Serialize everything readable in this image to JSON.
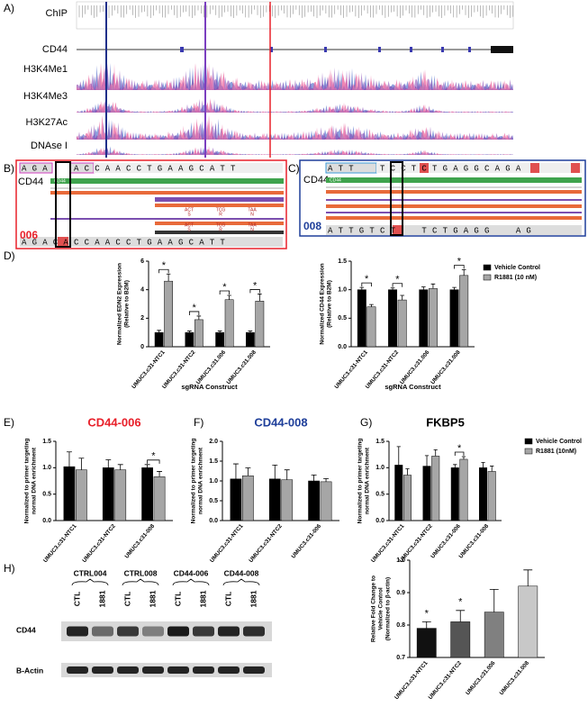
{
  "panel_labels": [
    "A)",
    "B)",
    "C)",
    "D)",
    "E)",
    "F)",
    "G)",
    "H)"
  ],
  "tracks": [
    "ChIP",
    "CD44",
    "H3K4Me1",
    "H3K4Me3",
    "H3K27Ac",
    "DNAse I"
  ],
  "panel_b": {
    "gene": "CD44",
    "sequence_top": "AGA  ACCAACCTGAAGCATT",
    "sequence_bottom": "AGACACCAACCTGAAGCATT",
    "guide": "006",
    "codons": [
      {
        "codon": "ACT",
        "aa": "S"
      },
      {
        "codon": "TCG",
        "aa": "R"
      },
      {
        "codon": "TAA",
        "aa": "N"
      }
    ]
  },
  "panel_c": {
    "gene": "CD44",
    "sequence_top": "ATT  TCCTCTGAGGCAGA",
    "sequence_bottom": "ATTGTCT  TCTGAGG  AG",
    "guide": "008"
  },
  "panel_h": {
    "groups": [
      "CTRL004",
      "CTRL008",
      "CD44-006",
      "CD44-008"
    ],
    "lanes": [
      "CTL",
      "1881"
    ],
    "rows": [
      "CD44",
      "B-Actin"
    ]
  },
  "chart_data": [
    {
      "type": "bar",
      "ylabel": [
        "Normalized EDN2 Expression",
        "(Relative to B2M)"
      ],
      "xlabel": "sgRNA Construct",
      "categories": [
        "UMUC3.c31-NTC1",
        "UMUC3.c31-NTC2",
        "UMUC3.c31.006",
        "UMUC3.c31.008"
      ],
      "series": [
        {
          "name": "Vehicle Control",
          "color": "#000000",
          "values": [
            1.0,
            1.0,
            1.0,
            1.0
          ],
          "errors": [
            0.15,
            0.1,
            0.1,
            0.1
          ]
        },
        {
          "name": "R1881 (10 nM)",
          "color": "#a6a6a6",
          "values": [
            4.6,
            1.9,
            3.3,
            3.2
          ],
          "errors": [
            0.5,
            0.25,
            0.3,
            0.5
          ]
        }
      ],
      "significance": [
        "*",
        "*",
        "*",
        "*"
      ],
      "ylim": [
        0,
        6
      ],
      "yticks": [
        0,
        2,
        4,
        6
      ]
    },
    {
      "type": "bar",
      "ylabel": [
        "Normalized CD44 Expression",
        "(Relative to B2M)"
      ],
      "xlabel": "sgRNA Construct",
      "categories": [
        "UMUC3.c31-NTC1",
        "UMUC3.c31-NTC2",
        "UMUC3.c31.006",
        "UMUC3.c31.008"
      ],
      "series": [
        {
          "name": "Vehicle Control",
          "color": "#000000",
          "values": [
            1.0,
            1.0,
            1.0,
            1.0
          ],
          "errors": [
            0.04,
            0.03,
            0.05,
            0.04
          ]
        },
        {
          "name": "R1881 (10 nM)",
          "color": "#a6a6a6",
          "values": [
            0.7,
            0.82,
            1.02,
            1.25
          ],
          "errors": [
            0.04,
            0.08,
            0.08,
            0.1
          ]
        }
      ],
      "significance": [
        "*",
        "*",
        null,
        "*"
      ],
      "ylim": [
        0,
        1.5
      ],
      "yticks": [
        {
          "value": 0,
          "label": "0.0"
        },
        0.5,
        {
          "value": 1,
          "label": "1.0"
        },
        1.5
      ],
      "legend": "right"
    },
    {
      "type": "bar",
      "title": "CD44-006",
      "title_color": "#e8202a",
      "ylabel": [
        "Normalized to primer targeting",
        "normal DNA enrichment"
      ],
      "categories": [
        "UMUC3.c31-NTC1",
        "UMUC3.c31-NTC2",
        "UMUC3.c31-008"
      ],
      "series": [
        {
          "name": "Vehicle Control",
          "color": "#000000",
          "values": [
            1.02,
            1.0,
            1.0
          ],
          "errors": [
            0.28,
            0.15,
            0.06
          ]
        },
        {
          "name": "R1881 (10nM)",
          "color": "#a6a6a6",
          "values": [
            0.96,
            0.96,
            0.83
          ],
          "errors": [
            0.22,
            0.1,
            0.1
          ]
        }
      ],
      "significance": [
        null,
        null,
        "*"
      ],
      "ylim": [
        0,
        1.5
      ],
      "yticks": [
        {
          "value": 0,
          "label": "0.0"
        },
        0.5,
        {
          "value": 1,
          "label": "1.0"
        },
        1.5
      ]
    },
    {
      "type": "bar",
      "title": "CD44-008",
      "title_color": "#1f3f9a",
      "ylabel": [
        "Normalized to primer targeting",
        "normal DNA enrichment"
      ],
      "categories": [
        "UMUC3.c31-NTC1",
        "UMUC3.c31-NTC2",
        "UMUC3.c31-006"
      ],
      "series": [
        {
          "name": "Vehicle Control",
          "color": "#000000",
          "values": [
            1.05,
            1.05,
            1.0
          ],
          "errors": [
            0.38,
            0.35,
            0.15
          ]
        },
        {
          "name": "R1881 (10nM)",
          "color": "#a6a6a6",
          "values": [
            1.13,
            1.03,
            0.98
          ],
          "errors": [
            0.2,
            0.25,
            0.08
          ]
        }
      ],
      "ylim": [
        0,
        2
      ],
      "yticks": [
        {
          "value": 0,
          "label": "0.0"
        },
        0.5,
        {
          "value": 1,
          "label": "1.0"
        },
        1.5,
        {
          "value": 2,
          "label": "2.0"
        }
      ]
    },
    {
      "type": "bar",
      "title": "FKBP5",
      "title_color": "#000000",
      "ylabel": [
        "Normalized to primer targeting",
        "normal DNA enrichment"
      ],
      "categories": [
        "UMUC3.c31-NTC1",
        "UMUC3.c31-NTC2",
        "UMUC3.c31-006",
        "UMUC3.c31-008"
      ],
      "series": [
        {
          "name": "Vehicle Control",
          "color": "#000000",
          "values": [
            1.05,
            1.03,
            1.0,
            1.0
          ],
          "errors": [
            0.35,
            0.2,
            0.06,
            0.1
          ]
        },
        {
          "name": "R1881 (10nM)",
          "color": "#a6a6a6",
          "values": [
            0.86,
            1.22,
            1.16,
            0.93
          ],
          "errors": [
            0.12,
            0.12,
            0.05,
            0.1
          ]
        }
      ],
      "significance": [
        null,
        null,
        "*",
        null
      ],
      "ylim": [
        0,
        1.5
      ],
      "yticks": [
        {
          "value": 0,
          "label": "0.0"
        },
        0.5,
        {
          "value": 1,
          "label": "1.0"
        },
        1.5
      ],
      "legend": "right"
    },
    {
      "type": "bar",
      "ylabel": [
        "Relative Fold Change to",
        "Vehicle Control",
        "(Normalized to β-actin)"
      ],
      "categories": [
        "UMUC3.c31-NTC1",
        "UMUC3.c31-NTC2",
        "UMUC3.c31.006",
        "UMUC3.c31.008"
      ],
      "series": [
        {
          "colors": [
            "#111111",
            "#555555",
            "#808080",
            "#c8c8c8"
          ],
          "values": [
            0.79,
            0.81,
            0.84,
            0.92
          ],
          "errors": [
            0.02,
            0.035,
            0.07,
            0.05
          ]
        }
      ],
      "significance": [
        "*",
        "*",
        null,
        null
      ],
      "ylim": [
        0.7,
        1
      ],
      "yticks": [
        0.7,
        0.8,
        0.9,
        {
          "value": 1,
          "label": "1.0"
        }
      ]
    }
  ]
}
